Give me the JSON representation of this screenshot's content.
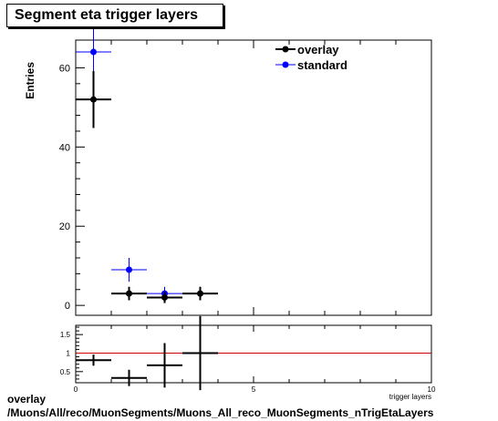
{
  "title": "Segment eta trigger layers",
  "footer": {
    "line1": "overlay",
    "line2": "/Muons/All/reco/MuonSegments/Muons_All_reco_MuonSegments_nTrigEtaLayers"
  },
  "chart_data": [
    {
      "type": "scatter",
      "panel": "main",
      "title": "Segment eta trigger layers",
      "ylabel": "Entries",
      "xlim": [
        0,
        10
      ],
      "ylim": [
        -2.5,
        67
      ],
      "y_ticks": [
        0,
        20,
        40,
        60
      ],
      "legend": "top-right",
      "series": [
        {
          "name": "overlay",
          "color": "#000000",
          "points": [
            {
              "x": 0.5,
              "y": 52,
              "xerr": 0.5,
              "yerr": 7.2
            },
            {
              "x": 1.5,
              "y": 3,
              "xerr": 0.5,
              "yerr": 1.7
            },
            {
              "x": 2.5,
              "y": 2,
              "xerr": 0.5,
              "yerr": 1.4
            },
            {
              "x": 3.5,
              "y": 3,
              "xerr": 0.5,
              "yerr": 1.7
            }
          ]
        },
        {
          "name": "standard",
          "color": "#0000ff",
          "points": [
            {
              "x": 0.5,
              "y": 64,
              "xerr": 0.5,
              "yerr": 8
            },
            {
              "x": 1.5,
              "y": 9,
              "xerr": 0.5,
              "yerr": 3
            },
            {
              "x": 2.5,
              "y": 3,
              "xerr": 0.5,
              "yerr": 1.7
            }
          ]
        }
      ]
    },
    {
      "type": "scatter",
      "panel": "ratio",
      "xlabel": "trigger layers",
      "xlim": [
        0,
        10
      ],
      "ylim": [
        0.2,
        1.75
      ],
      "x_ticks": [
        0,
        5,
        10
      ],
      "y_ticks": [
        0.5,
        1,
        1.5
      ],
      "reference_line": {
        "y": 1,
        "color": "#cc0000"
      },
      "series": [
        {
          "color": "#000000",
          "points": [
            {
              "x": 0.5,
              "y": 0.81,
              "xerr": 0.5,
              "yerr": 0.15
            },
            {
              "x": 1.5,
              "y": 0.33,
              "xerr": 0.5,
              "yerr": 0.22
            },
            {
              "x": 2.5,
              "y": 0.67,
              "xerr": 0.5,
              "yerr": 0.6
            },
            {
              "x": 3.5,
              "y": 1.0,
              "xerr": 0.5,
              "yerr": 1.0
            }
          ]
        }
      ]
    }
  ]
}
